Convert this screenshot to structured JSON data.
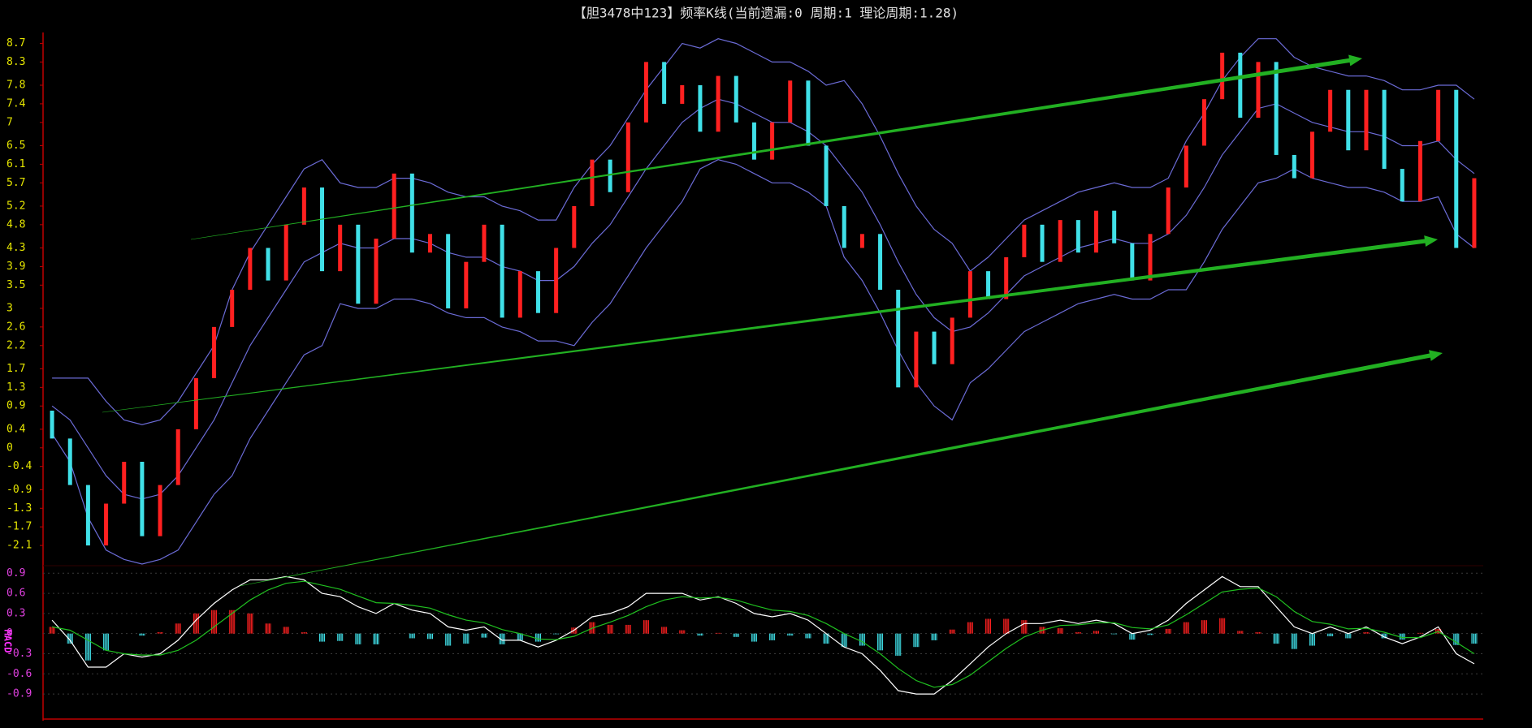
{
  "chart_data": [
    {
      "type": "candlestick",
      "title": "【胆3478中123】频率K线(当前遗漏:0 周期:1 理论周期:1.28)",
      "up_color": "#ff2020",
      "down_color": "#40e0e8",
      "open": [
        0.8,
        0.2,
        -0.8,
        -2.1,
        -1.2,
        -0.3,
        -1.9,
        -0.8,
        0.4,
        1.5,
        2.6,
        3.4,
        4.3,
        3.6,
        4.8,
        5.6,
        3.8,
        4.8,
        3.1,
        4.5,
        5.9,
        4.2,
        4.6,
        3.0,
        4.0,
        4.8,
        2.8,
        3.8,
        2.9,
        4.3,
        5.2,
        6.2,
        5.5,
        7.0,
        8.3,
        7.4,
        7.8,
        6.8,
        8.0,
        7.0,
        6.2,
        7.0,
        7.9,
        6.5,
        5.2,
        4.3,
        4.6,
        3.4,
        1.3,
        2.5,
        1.8,
        2.8,
        3.8,
        3.2,
        4.1,
        4.8,
        4.0,
        4.9,
        4.2,
        5.1,
        4.4,
        3.6,
        4.6,
        5.6,
        6.5,
        7.5,
        8.5,
        7.1,
        8.3,
        6.3,
        5.8,
        6.8,
        7.7,
        6.4,
        7.7,
        6.0,
        5.3,
        6.6,
        7.7,
        4.3
      ],
      "close": [
        0.2,
        -0.8,
        -2.1,
        -1.2,
        -0.3,
        -1.9,
        -0.8,
        0.4,
        1.5,
        2.6,
        3.4,
        4.3,
        3.6,
        4.8,
        5.6,
        3.8,
        4.8,
        3.1,
        4.5,
        5.9,
        4.2,
        4.6,
        3.0,
        4.0,
        4.8,
        2.8,
        3.8,
        2.9,
        4.3,
        5.2,
        6.2,
        5.5,
        7.0,
        8.3,
        7.4,
        7.8,
        6.8,
        8.0,
        7.0,
        6.2,
        7.0,
        7.9,
        6.5,
        5.2,
        4.3,
        4.6,
        3.4,
        1.3,
        2.5,
        1.8,
        2.8,
        3.8,
        3.2,
        4.1,
        4.8,
        4.0,
        4.9,
        4.2,
        5.1,
        4.4,
        3.6,
        4.6,
        5.6,
        6.5,
        7.5,
        8.5,
        7.1,
        8.3,
        6.3,
        5.8,
        6.8,
        7.7,
        6.4,
        7.7,
        6.0,
        5.3,
        6.6,
        7.7,
        4.3,
        5.8
      ],
      "series": [
        {
          "color": "#6b6bd6",
          "values": [
            1.5,
            1.5,
            1.5,
            1.0,
            0.6,
            0.5,
            0.6,
            1.0,
            1.6,
            2.2,
            3.4,
            4.2,
            4.8,
            5.4,
            6.0,
            6.2,
            5.7,
            5.6,
            5.6,
            5.8,
            5.8,
            5.7,
            5.5,
            5.4,
            5.4,
            5.2,
            5.1,
            4.9,
            4.9,
            5.6,
            6.1,
            6.5,
            7.1,
            7.7,
            8.2,
            8.7,
            8.6,
            8.8,
            8.7,
            8.5,
            8.3,
            8.3,
            8.1,
            7.8,
            7.9,
            7.4,
            6.7,
            5.9,
            5.2,
            4.7,
            4.4,
            3.8,
            4.1,
            4.5,
            4.9,
            5.1,
            5.3,
            5.5,
            5.6,
            5.7,
            5.6,
            5.6,
            5.8,
            6.6,
            7.2,
            7.9,
            8.4,
            8.8,
            8.8,
            8.4,
            8.2,
            8.1,
            8.0,
            8.0,
            7.9,
            7.7,
            7.7,
            7.8,
            7.8,
            7.5
          ]
        },
        {
          "color": "#6b6bd6",
          "values": [
            0.9,
            0.6,
            0.0,
            -0.6,
            -1.0,
            -1.1,
            -1.0,
            -0.6,
            0.0,
            0.6,
            1.4,
            2.2,
            2.8,
            3.4,
            4.0,
            4.2,
            4.4,
            4.3,
            4.3,
            4.5,
            4.5,
            4.4,
            4.2,
            4.1,
            4.1,
            3.9,
            3.8,
            3.6,
            3.6,
            3.9,
            4.4,
            4.8,
            5.4,
            6.0,
            6.5,
            7.0,
            7.3,
            7.5,
            7.4,
            7.2,
            7.0,
            7.0,
            6.8,
            6.5,
            6.0,
            5.5,
            4.8,
            4.0,
            3.3,
            2.8,
            2.5,
            2.6,
            2.9,
            3.3,
            3.7,
            3.9,
            4.1,
            4.3,
            4.4,
            4.5,
            4.4,
            4.4,
            4.6,
            5.0,
            5.6,
            6.3,
            6.8,
            7.3,
            7.4,
            7.2,
            7.0,
            6.9,
            6.8,
            6.8,
            6.7,
            6.5,
            6.5,
            6.6,
            6.2,
            5.9
          ]
        },
        {
          "color": "#6b6bd6",
          "values": [
            0.3,
            -0.3,
            -1.5,
            -2.2,
            -2.4,
            -2.5,
            -2.4,
            -2.2,
            -1.6,
            -1.0,
            -0.6,
            0.2,
            0.8,
            1.4,
            2.0,
            2.2,
            3.1,
            3.0,
            3.0,
            3.2,
            3.2,
            3.1,
            2.9,
            2.8,
            2.8,
            2.6,
            2.5,
            2.3,
            2.3,
            2.2,
            2.7,
            3.1,
            3.7,
            4.3,
            4.8,
            5.3,
            6.0,
            6.2,
            6.1,
            5.9,
            5.7,
            5.7,
            5.5,
            5.2,
            4.1,
            3.6,
            2.9,
            2.1,
            1.4,
            0.9,
            0.6,
            1.4,
            1.7,
            2.1,
            2.5,
            2.7,
            2.9,
            3.1,
            3.2,
            3.3,
            3.2,
            3.2,
            3.4,
            3.4,
            4.0,
            4.7,
            5.2,
            5.7,
            5.8,
            6.0,
            5.8,
            5.7,
            5.6,
            5.6,
            5.5,
            5.3,
            5.3,
            5.4,
            4.6,
            4.3
          ]
        }
      ],
      "ylim": [
        -2.5,
        8.9
      ],
      "yticks": [
        8.7,
        8.3,
        7.8,
        7.4,
        7.0,
        6.5,
        6.1,
        5.7,
        5.2,
        4.8,
        4.3,
        3.9,
        3.5,
        3.0,
        2.6,
        2.2,
        1.7,
        1.3,
        0.9,
        0.4,
        0,
        -0.4,
        -0.9,
        -1.3,
        -1.7,
        -2.1
      ]
    },
    {
      "type": "macd",
      "ylabel": "MACD",
      "series": [
        {
          "color": "#ffffff",
          "values": [
            0.2,
            -0.1,
            -0.5,
            -0.5,
            -0.3,
            -0.35,
            -0.3,
            -0.1,
            0.2,
            0.45,
            0.65,
            0.8,
            0.8,
            0.85,
            0.8,
            0.6,
            0.55,
            0.4,
            0.3,
            0.45,
            0.35,
            0.3,
            0.1,
            0.05,
            0.1,
            -0.1,
            -0.1,
            -0.2,
            -0.1,
            0.05,
            0.25,
            0.3,
            0.4,
            0.6,
            0.6,
            0.6,
            0.5,
            0.55,
            0.45,
            0.3,
            0.25,
            0.3,
            0.2,
            0.0,
            -0.2,
            -0.3,
            -0.55,
            -0.85,
            -0.9,
            -0.9,
            -0.7,
            -0.45,
            -0.2,
            0.0,
            0.15,
            0.15,
            0.2,
            0.15,
            0.2,
            0.15,
            0.0,
            0.05,
            0.2,
            0.45,
            0.65,
            0.85,
            0.7,
            0.7,
            0.4,
            0.1,
            0.0,
            0.1,
            0.0,
            0.1,
            -0.05,
            -0.15,
            -0.05,
            0.1,
            -0.3,
            -0.45
          ]
        },
        {
          "color": "#20c020",
          "values": [
            0.1,
            0.05,
            -0.1,
            -0.25,
            -0.3,
            -0.32,
            -0.32,
            -0.25,
            -0.1,
            0.1,
            0.3,
            0.5,
            0.65,
            0.75,
            0.78,
            0.72,
            0.66,
            0.56,
            0.46,
            0.45,
            0.42,
            0.38,
            0.28,
            0.2,
            0.16,
            0.06,
            0.0,
            -0.08,
            -0.09,
            -0.04,
            0.08,
            0.17,
            0.27,
            0.4,
            0.5,
            0.55,
            0.53,
            0.54,
            0.5,
            0.42,
            0.35,
            0.33,
            0.27,
            0.15,
            0.0,
            -0.12,
            -0.3,
            -0.52,
            -0.7,
            -0.8,
            -0.76,
            -0.62,
            -0.42,
            -0.22,
            -0.05,
            0.05,
            0.12,
            0.13,
            0.16,
            0.16,
            0.09,
            0.07,
            0.13,
            0.28,
            0.45,
            0.62,
            0.66,
            0.68,
            0.55,
            0.33,
            0.18,
            0.14,
            0.07,
            0.08,
            0.02,
            -0.06,
            -0.06,
            0.03,
            -0.13,
            -0.3
          ]
        }
      ],
      "hist": [
        0.1,
        -0.15,
        -0.4,
        -0.25,
        0.0,
        -0.03,
        0.02,
        0.15,
        0.3,
        0.35,
        0.35,
        0.3,
        0.15,
        0.1,
        0.02,
        -0.12,
        -0.11,
        -0.16,
        -0.16,
        0.0,
        -0.07,
        -0.08,
        -0.18,
        -0.15,
        -0.06,
        -0.16,
        -0.1,
        -0.12,
        -0.01,
        0.09,
        0.17,
        0.13,
        0.13,
        0.2,
        0.1,
        0.05,
        -0.03,
        0.01,
        -0.05,
        -0.12,
        -0.1,
        -0.03,
        -0.07,
        -0.15,
        -0.2,
        -0.18,
        -0.25,
        -0.33,
        -0.2,
        -0.1,
        0.06,
        0.17,
        0.22,
        0.22,
        0.2,
        0.1,
        0.08,
        0.02,
        0.04,
        -0.01,
        -0.09,
        -0.02,
        0.07,
        0.17,
        0.2,
        0.23,
        0.04,
        0.02,
        -0.15,
        -0.23,
        -0.18,
        -0.04,
        -0.07,
        0.02,
        -0.07,
        -0.09,
        0.01,
        0.07,
        -0.17,
        -0.15
      ],
      "up_color": "#ff2020",
      "down_color": "#40e0e8",
      "ylim": [
        -1.25,
        1.0
      ],
      "yticks": [
        0.9,
        0.6,
        0.3,
        0,
        -0.3,
        -0.6,
        -0.9
      ],
      "grid": true
    }
  ]
}
